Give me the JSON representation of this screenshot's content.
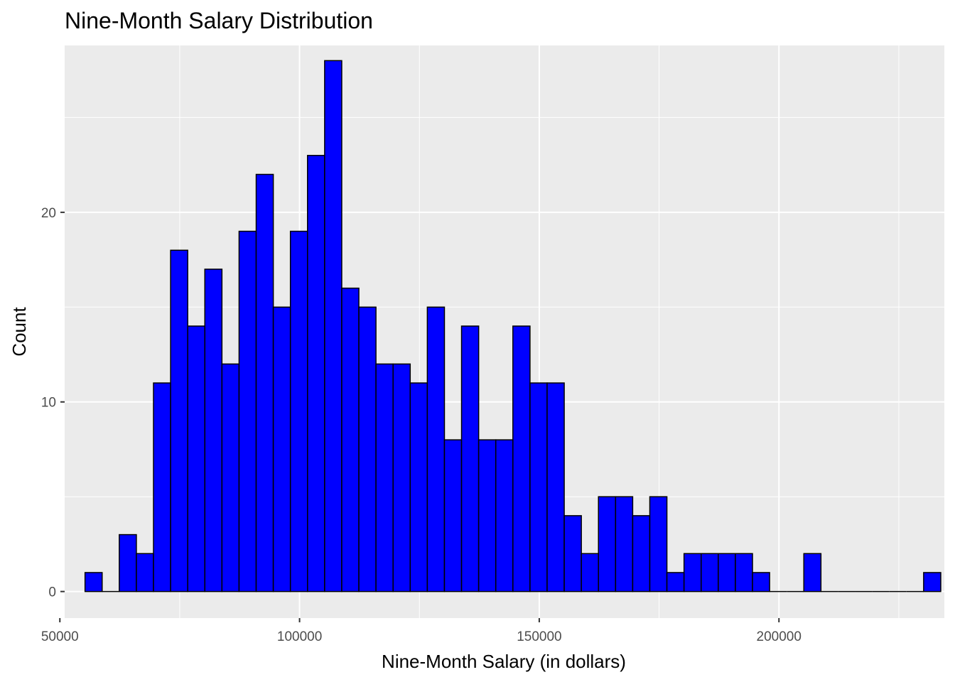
{
  "chart_data": {
    "type": "bar",
    "title": "Nine-Month Salary Distribution",
    "xlabel": "Nine-Month Salary (in dollars)",
    "ylabel": "Count",
    "xlim": [
      51000,
      234500
    ],
    "ylim": [
      -1.4,
      28.8
    ],
    "bin_width": 3570,
    "bins_start": 55250,
    "counts": [
      1,
      0,
      3,
      2,
      11,
      18,
      14,
      17,
      12,
      19,
      22,
      15,
      19,
      23,
      28,
      16,
      15,
      12,
      12,
      11,
      15,
      8,
      14,
      8,
      8,
      14,
      11,
      11,
      4,
      2,
      5,
      5,
      4,
      5,
      1,
      2,
      2,
      2,
      2,
      1,
      0,
      0,
      2,
      0,
      0,
      0,
      0,
      0,
      0,
      1
    ],
    "x_ticks": [
      50000,
      100000,
      150000,
      200000
    ],
    "x_tick_labels": [
      "50000",
      "100000",
      "150000",
      "200000"
    ],
    "y_ticks": [
      0,
      10,
      20
    ],
    "y_tick_labels": [
      "0",
      "10",
      "20"
    ],
    "x_minor_ticks": [
      75000,
      125000,
      175000,
      225000
    ],
    "y_minor_ticks": [
      5,
      15,
      25
    ],
    "grid": true,
    "colors": {
      "bar_fill": "#0000ff",
      "bar_stroke": "#000000",
      "panel_background": "#ebebeb",
      "grid": "#ffffff"
    }
  }
}
